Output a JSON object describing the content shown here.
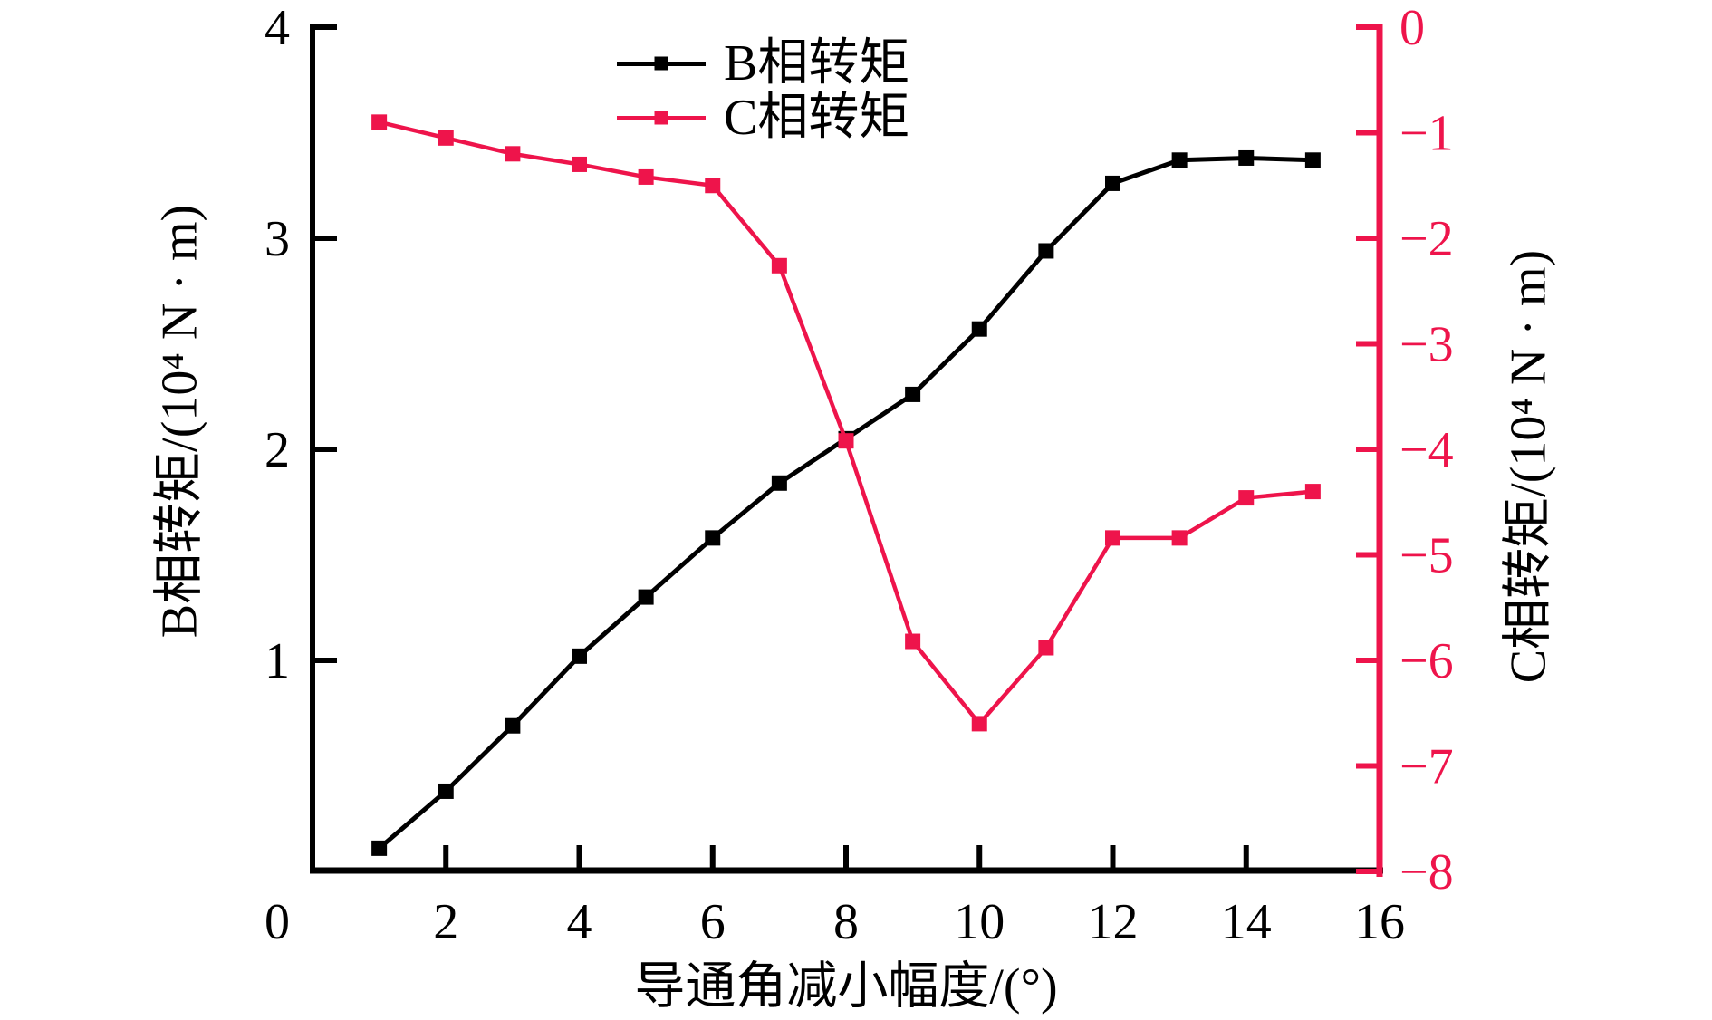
{
  "figure": {
    "background": "#ffffff",
    "legend": {
      "position": "top-center"
    }
  },
  "chart_data": {
    "type": "line",
    "x": [
      1,
      2,
      3,
      4,
      5,
      6,
      7,
      8,
      9,
      10,
      11,
      12,
      13,
      14,
      15
    ],
    "series": [
      {
        "name": "B相转矩",
        "axis": "left",
        "color": "#000000",
        "marker": "square",
        "values": [
          0.11,
          0.38,
          0.69,
          1.02,
          1.3,
          1.58,
          1.84,
          2.05,
          2.26,
          2.57,
          2.94,
          3.26,
          3.37,
          3.38,
          3.37
        ]
      },
      {
        "name": "C相转矩",
        "axis": "right",
        "color": "#EE144B",
        "marker": "square",
        "values": [
          -0.9,
          -1.05,
          -1.2,
          -1.3,
          -1.42,
          -1.5,
          -2.26,
          -3.92,
          -5.82,
          -6.6,
          -5.88,
          -4.84,
          -4.84,
          -4.46,
          -4.4
        ]
      }
    ],
    "xlabel": "导通角减小幅度/(°)",
    "ylabel_left": "B相转矩/(10⁴ N · m)",
    "ylabel_right": "C相转矩/(10⁴ N · m)",
    "xlim": [
      0,
      16
    ],
    "x_ticks": [
      0,
      2,
      4,
      6,
      8,
      10,
      12,
      14,
      16
    ],
    "ylim_left": [
      0,
      4
    ],
    "y_ticks_left_labeled": [
      1,
      2,
      3,
      4
    ],
    "ylim_right": [
      -8,
      0
    ],
    "y_ticks_right_labeled": [
      0,
      -1,
      -2,
      -3,
      -4,
      -5,
      -6,
      -7,
      -8
    ],
    "grid": false,
    "legend_position": "top-center",
    "axis_colors": {
      "left": "#000000",
      "bottom": "#000000",
      "right": "#EE144B"
    }
  }
}
